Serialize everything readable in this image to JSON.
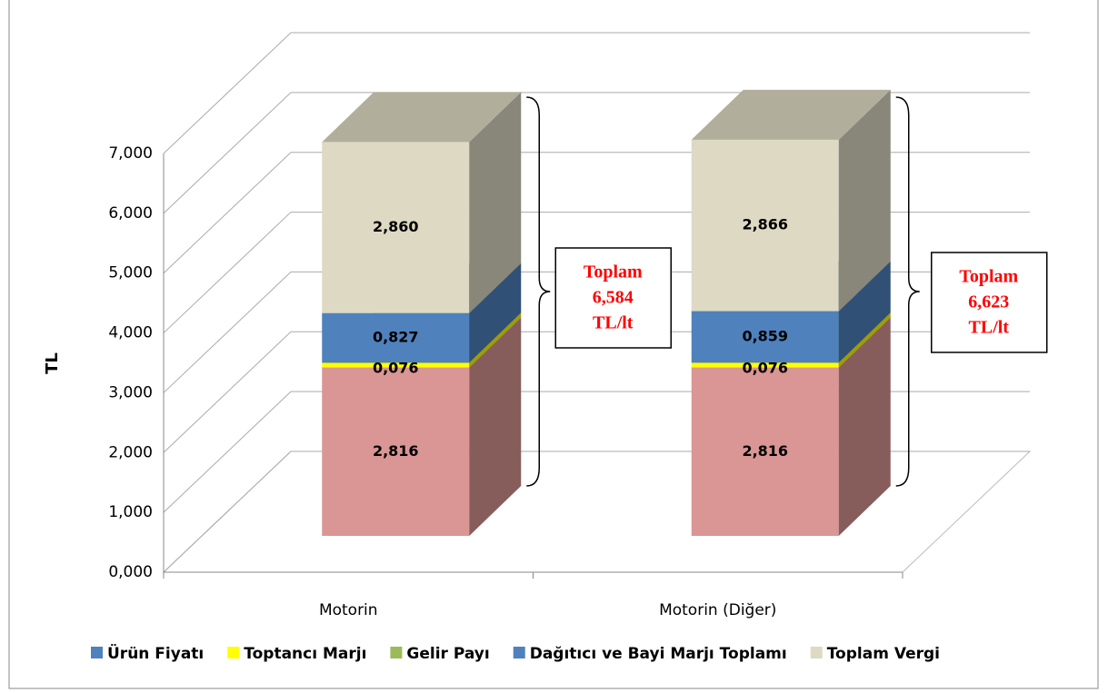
{
  "chart_data": {
    "type": "bar3d_stacked",
    "ylabel": "TL",
    "categories": [
      "Motorin",
      "Motorin (Diğer)"
    ],
    "series": [
      {
        "name": "Ürün Fiyatı",
        "color": "#d99694",
        "legend_color": "#4f81bd",
        "values": [
          2.816,
          2.816
        ],
        "value_labels": [
          "2,816",
          "2,816"
        ]
      },
      {
        "name": "Toptancı Marjı",
        "color": "#ffff00",
        "values": [
          0.076,
          0.076
        ],
        "value_labels": [
          "0,076",
          "0,076"
        ]
      },
      {
        "name": "Gelir Payı",
        "color": "#9bbb59",
        "values": [
          0.005,
          0.006
        ]
      },
      {
        "name": "Dağıtıcı ve Bayi Marjı Toplamı",
        "color": "#4f81bd",
        "values": [
          0.827,
          0.859
        ],
        "value_labels": [
          "0,827",
          "0,859"
        ]
      },
      {
        "name": "Toplam Vergi",
        "color": "#ddd9c3",
        "values": [
          2.86,
          2.866
        ],
        "value_labels": [
          "2,860",
          "2,866"
        ]
      }
    ],
    "ylim": [
      0,
      7
    ],
    "yticks": [
      {
        "value": 0,
        "label": "0,000"
      },
      {
        "value": 1,
        "label": "1,000"
      },
      {
        "value": 2,
        "label": "2,000"
      },
      {
        "value": 3,
        "label": "3,000"
      },
      {
        "value": 4,
        "label": "4,000"
      },
      {
        "value": 5,
        "label": "5,000"
      },
      {
        "value": 6,
        "label": "6,000"
      },
      {
        "value": 7,
        "label": "7,000"
      }
    ],
    "grid": true,
    "legend": "bottom",
    "annotations": [
      [
        "Toplam",
        "6,584",
        "TL/lt"
      ],
      [
        "Toplam",
        "6,623",
        "TL/lt"
      ]
    ]
  }
}
